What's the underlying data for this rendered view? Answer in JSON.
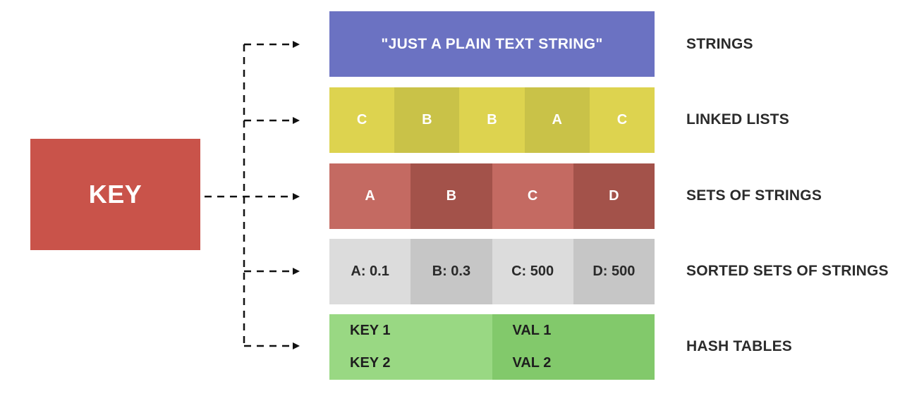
{
  "key": {
    "label": "KEY",
    "color": "#c9534a"
  },
  "types": {
    "strings": {
      "label": "STRINGS",
      "content": "\"JUST A PLAIN TEXT STRING\"",
      "color": "#6b72c2"
    },
    "linked_lists": {
      "label": "LINKED LISTS",
      "items": [
        "C",
        "B",
        "B",
        "A",
        "C"
      ],
      "colors": [
        "#ddd34f",
        "#c9c248",
        "#ddd34f",
        "#c9c248",
        "#ddd34f"
      ]
    },
    "sets": {
      "label": "SETS OF STRINGS",
      "items": [
        "A",
        "B",
        "C",
        "D"
      ],
      "colors": [
        "#c46a62",
        "#a3524a",
        "#c46a62",
        "#a3524a"
      ]
    },
    "sorted_sets": {
      "label": "SORTED SETS OF STRINGS",
      "items": [
        "A: 0.1",
        "B: 0.3",
        "C: 500",
        "D: 500"
      ],
      "colors": [
        "#dcdcdc",
        "#c6c6c6",
        "#dcdcdc",
        "#c6c6c6"
      ]
    },
    "hash_tables": {
      "label": "HASH TABLES",
      "rows": [
        {
          "key": "KEY 1",
          "value": "VAL 1"
        },
        {
          "key": "KEY 2",
          "value": "VAL 2"
        }
      ],
      "colors": {
        "light": "#99d883",
        "dark": "#82c96b"
      }
    }
  }
}
